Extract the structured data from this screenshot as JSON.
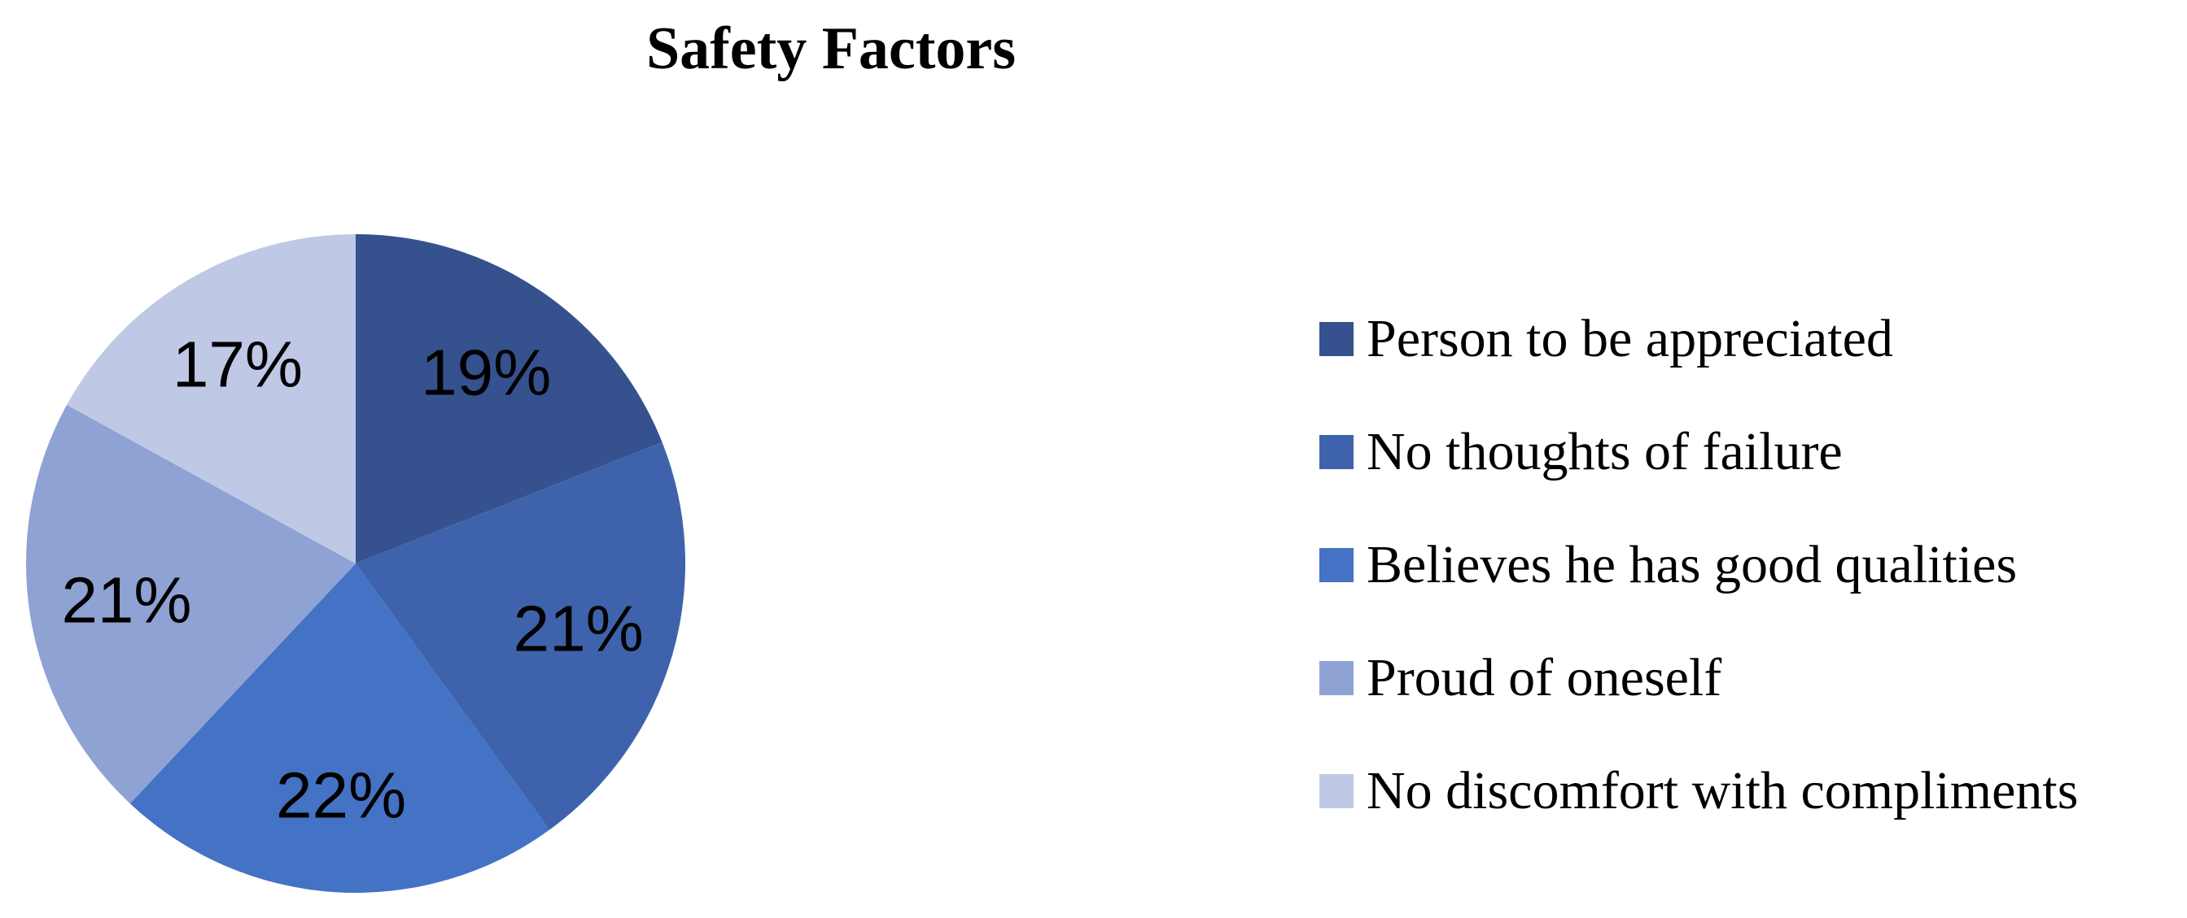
{
  "chart_data": {
    "type": "pie",
    "title": "Safety Factors",
    "labels": [
      "Person to be appreciated",
      "No thoughts of failure",
      "Believes he has good qualities",
      "Proud of oneself",
      "No discomfort with compliments"
    ],
    "values": [
      19,
      21,
      22,
      21,
      17
    ],
    "data_labels": [
      "19%",
      "21%",
      "22%",
      "21%",
      "17%"
    ],
    "unit": "percent",
    "colors": [
      "#35518E",
      "#3E63AC",
      "#4472C4",
      "#8FA2D4",
      "#BFC9E6"
    ],
    "start_angle_deg": 0,
    "direction": "clockwise",
    "legend_position": "right",
    "grid": false,
    "background_color": "#FFFFFF",
    "title_color": "#000000",
    "label_color": "#000000"
  }
}
